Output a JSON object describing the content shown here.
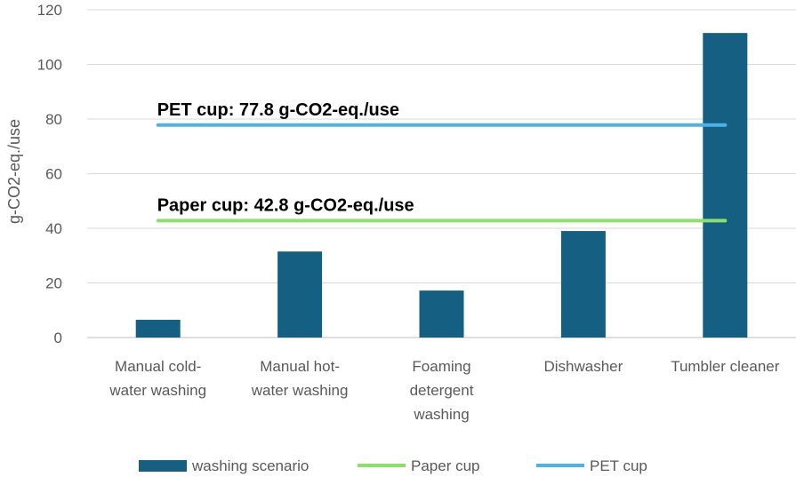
{
  "chart_data": {
    "type": "bar",
    "categories": [
      [
        "Manual cold-",
        "water washing"
      ],
      [
        "Manual hot-",
        "water washing"
      ],
      [
        "Foaming",
        "detergent",
        "washing"
      ],
      [
        "Dishwasher"
      ],
      [
        "Tumbler cleaner"
      ]
    ],
    "ylabel": "g-CO2-eq./use",
    "ylim": [
      0,
      120
    ],
    "yticks": [
      0,
      20,
      40,
      60,
      80,
      100,
      120
    ],
    "grid": true,
    "legend_position": "bottom",
    "series": [
      {
        "name": "washing scenario",
        "kind": "bar",
        "color": "#156082",
        "values": [
          6.5,
          31.5,
          17.2,
          39.0,
          111.5
        ]
      },
      {
        "name": "Paper cup",
        "kind": "line",
        "color": "#8ee06a",
        "values": [
          42.8,
          42.8,
          42.8,
          42.8,
          42.8
        ]
      },
      {
        "name": "PET cup",
        "kind": "line",
        "color": "#4db3e6",
        "values": [
          77.8,
          77.8,
          77.8,
          77.8,
          77.8
        ]
      }
    ],
    "annotations": [
      {
        "text": "PET cup: 77.8 g-CO2-eq./use",
        "y": 77.8
      },
      {
        "text": "Paper cup: 42.8 g-CO2-eq./use",
        "y": 42.8
      }
    ]
  }
}
